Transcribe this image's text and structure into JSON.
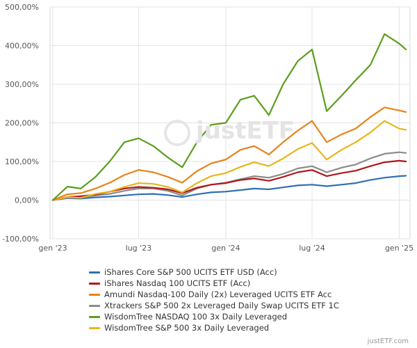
{
  "chart_data": {
    "type": "line",
    "ylim": [
      -100,
      500
    ],
    "y_ticks": [
      -100,
      0,
      100,
      200,
      300,
      400,
      500
    ],
    "y_tick_labels": [
      "-100,00%",
      "0,00%",
      "100,00%",
      "200,00%",
      "300,00%",
      "400,00%",
      "500,00%"
    ],
    "x_range": [
      "2023-01-01",
      "2025-01-15"
    ],
    "x_ticks": [
      "2023-01-01",
      "2023-07-01",
      "2024-01-01",
      "2024-07-01",
      "2025-01-01"
    ],
    "x_tick_labels": [
      "gen '23",
      "lug '23",
      "gen '24",
      "lug '24",
      "gen '25"
    ],
    "grid": true,
    "legend_position": "bottom",
    "series": [
      {
        "name": "iShares Core S&P 500 UCITS ETF USD (Acc)",
        "color": "#2f6fb2",
        "x": [
          "2023-01-01",
          "2023-02-01",
          "2023-03-01",
          "2023-04-01",
          "2023-05-01",
          "2023-06-01",
          "2023-07-01",
          "2023-08-01",
          "2023-09-01",
          "2023-10-01",
          "2023-11-01",
          "2023-12-01",
          "2024-01-01",
          "2024-02-01",
          "2024-03-01",
          "2024-04-01",
          "2024-05-01",
          "2024-06-01",
          "2024-07-01",
          "2024-08-01",
          "2024-09-01",
          "2024-10-01",
          "2024-11-01",
          "2024-12-01",
          "2025-01-01",
          "2025-01-15"
        ],
        "y": [
          0,
          5,
          4,
          7,
          9,
          12,
          15,
          16,
          13,
          8,
          15,
          20,
          22,
          26,
          30,
          28,
          33,
          38,
          40,
          36,
          40,
          44,
          52,
          58,
          62,
          63
        ]
      },
      {
        "name": "iShares Nasdaq 100 UCITS ETF (Acc)",
        "color": "#b2161a",
        "x": [
          "2023-01-01",
          "2023-02-01",
          "2023-03-01",
          "2023-04-01",
          "2023-05-01",
          "2023-06-01",
          "2023-07-01",
          "2023-08-01",
          "2023-09-01",
          "2023-10-01",
          "2023-11-01",
          "2023-12-01",
          "2024-01-01",
          "2024-02-01",
          "2024-03-01",
          "2024-04-01",
          "2024-05-01",
          "2024-06-01",
          "2024-07-01",
          "2024-08-01",
          "2024-09-01",
          "2024-10-01",
          "2024-11-01",
          "2024-12-01",
          "2025-01-01",
          "2025-01-15"
        ],
        "y": [
          0,
          8,
          10,
          14,
          22,
          30,
          34,
          32,
          28,
          18,
          32,
          40,
          44,
          52,
          56,
          50,
          60,
          72,
          78,
          62,
          70,
          76,
          88,
          98,
          102,
          100
        ]
      },
      {
        "name": "Amundi Nasdaq-100 Daily (2x) Leveraged UCITS ETF Acc",
        "color": "#e8821a",
        "x": [
          "2023-01-01",
          "2023-02-01",
          "2023-03-01",
          "2023-04-01",
          "2023-05-01",
          "2023-06-01",
          "2023-07-01",
          "2023-08-01",
          "2023-09-01",
          "2023-10-01",
          "2023-11-01",
          "2023-12-01",
          "2024-01-01",
          "2024-02-01",
          "2024-03-01",
          "2024-04-01",
          "2024-05-01",
          "2024-06-01",
          "2024-07-01",
          "2024-08-01",
          "2024-09-01",
          "2024-10-01",
          "2024-11-01",
          "2024-12-01",
          "2025-01-01",
          "2025-01-15"
        ],
        "y": [
          0,
          15,
          18,
          30,
          45,
          65,
          78,
          72,
          60,
          45,
          75,
          95,
          105,
          130,
          140,
          118,
          150,
          180,
          205,
          150,
          170,
          185,
          215,
          240,
          232,
          228
        ]
      },
      {
        "name": "Xtrackers S&P 500 2x Leveraged Daily Swap UCITS ETF 1C",
        "color": "#8a8a8a",
        "x": [
          "2023-01-01",
          "2023-02-01",
          "2023-03-01",
          "2023-04-01",
          "2023-05-01",
          "2023-06-01",
          "2023-07-01",
          "2023-08-01",
          "2023-09-01",
          "2023-10-01",
          "2023-11-01",
          "2023-12-01",
          "2024-01-01",
          "2024-02-01",
          "2024-03-01",
          "2024-04-01",
          "2024-05-01",
          "2024-06-01",
          "2024-07-01",
          "2024-08-01",
          "2024-09-01",
          "2024-10-01",
          "2024-11-01",
          "2024-12-01",
          "2025-01-01",
          "2025-01-15"
        ],
        "y": [
          0,
          6,
          6,
          12,
          16,
          24,
          30,
          30,
          24,
          12,
          30,
          40,
          45,
          54,
          62,
          58,
          68,
          82,
          88,
          72,
          84,
          92,
          108,
          120,
          124,
          122
        ]
      },
      {
        "name": "WisdomTree NASDAQ 100 3x Daily Leveraged",
        "color": "#5a9e1a",
        "x": [
          "2023-01-01",
          "2023-02-01",
          "2023-03-01",
          "2023-04-01",
          "2023-05-01",
          "2023-06-01",
          "2023-07-01",
          "2023-08-01",
          "2023-09-01",
          "2023-10-01",
          "2023-11-01",
          "2023-12-01",
          "2024-01-01",
          "2024-02-01",
          "2024-03-01",
          "2024-04-01",
          "2024-05-01",
          "2024-06-01",
          "2024-07-01",
          "2024-08-01",
          "2024-09-01",
          "2024-10-01",
          "2024-11-01",
          "2024-12-01",
          "2025-01-01",
          "2025-01-15"
        ],
        "y": [
          0,
          35,
          30,
          60,
          100,
          150,
          160,
          140,
          110,
          85,
          150,
          195,
          200,
          260,
          270,
          220,
          300,
          360,
          390,
          230,
          270,
          310,
          350,
          430,
          405,
          390
        ]
      },
      {
        "name": "WisdomTree S&P 500 3x Daily Leveraged",
        "color": "#e8b51a",
        "x": [
          "2023-01-01",
          "2023-02-01",
          "2023-03-01",
          "2023-04-01",
          "2023-05-01",
          "2023-06-01",
          "2023-07-01",
          "2023-08-01",
          "2023-09-01",
          "2023-10-01",
          "2023-11-01",
          "2023-12-01",
          "2024-01-01",
          "2024-02-01",
          "2024-03-01",
          "2024-04-01",
          "2024-05-01",
          "2024-06-01",
          "2024-07-01",
          "2024-08-01",
          "2024-09-01",
          "2024-10-01",
          "2024-11-01",
          "2024-12-01",
          "2025-01-01",
          "2025-01-15"
        ],
        "y": [
          0,
          8,
          6,
          16,
          22,
          34,
          44,
          42,
          34,
          20,
          44,
          62,
          70,
          86,
          98,
          88,
          108,
          132,
          148,
          105,
          130,
          150,
          175,
          205,
          185,
          182
        ]
      }
    ]
  },
  "credit": "justETF.com",
  "watermark": "justETF"
}
